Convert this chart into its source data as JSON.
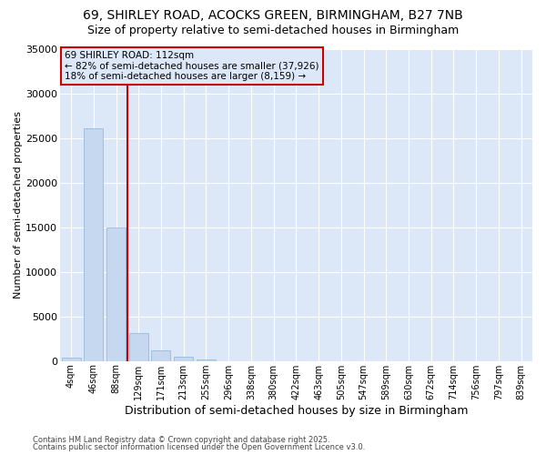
{
  "title_line1": "69, SHIRLEY ROAD, ACOCKS GREEN, BIRMINGHAM, B27 7NB",
  "title_line2": "Size of property relative to semi-detached houses in Birmingham",
  "xlabel": "Distribution of semi-detached houses by size in Birmingham",
  "ylabel": "Number of semi-detached properties",
  "footnote_line1": "Contains HM Land Registry data © Crown copyright and database right 2025.",
  "footnote_line2": "Contains public sector information licensed under the Open Government Licence v3.0.",
  "annotation_title": "69 SHIRLEY ROAD: 112sqm",
  "annotation_line1": "← 82% of semi-detached houses are smaller (37,926)",
  "annotation_line2": "18% of semi-detached houses are larger (8,159) →",
  "bar_color": "#c5d8f0",
  "bar_edge_color": "#8ab4d8",
  "vline_color": "#cc0000",
  "annotation_box_edge_color": "#cc0000",
  "figure_bg": "#ffffff",
  "axes_bg": "#dce8f8",
  "grid_color": "#ffffff",
  "categories": [
    "4sqm",
    "46sqm",
    "88sqm",
    "129sqm",
    "171sqm",
    "213sqm",
    "255sqm",
    "296sqm",
    "338sqm",
    "380sqm",
    "422sqm",
    "463sqm",
    "505sqm",
    "547sqm",
    "589sqm",
    "630sqm",
    "672sqm",
    "714sqm",
    "756sqm",
    "797sqm",
    "839sqm"
  ],
  "values": [
    400,
    26100,
    15000,
    3100,
    1200,
    500,
    200,
    0,
    0,
    0,
    0,
    0,
    0,
    0,
    0,
    0,
    0,
    0,
    0,
    0,
    0
  ],
  "ylim": [
    0,
    35000
  ],
  "yticks": [
    0,
    5000,
    10000,
    15000,
    20000,
    25000,
    30000,
    35000
  ],
  "vline_x": 2.5,
  "figsize": [
    6.0,
    5.0
  ],
  "dpi": 100
}
